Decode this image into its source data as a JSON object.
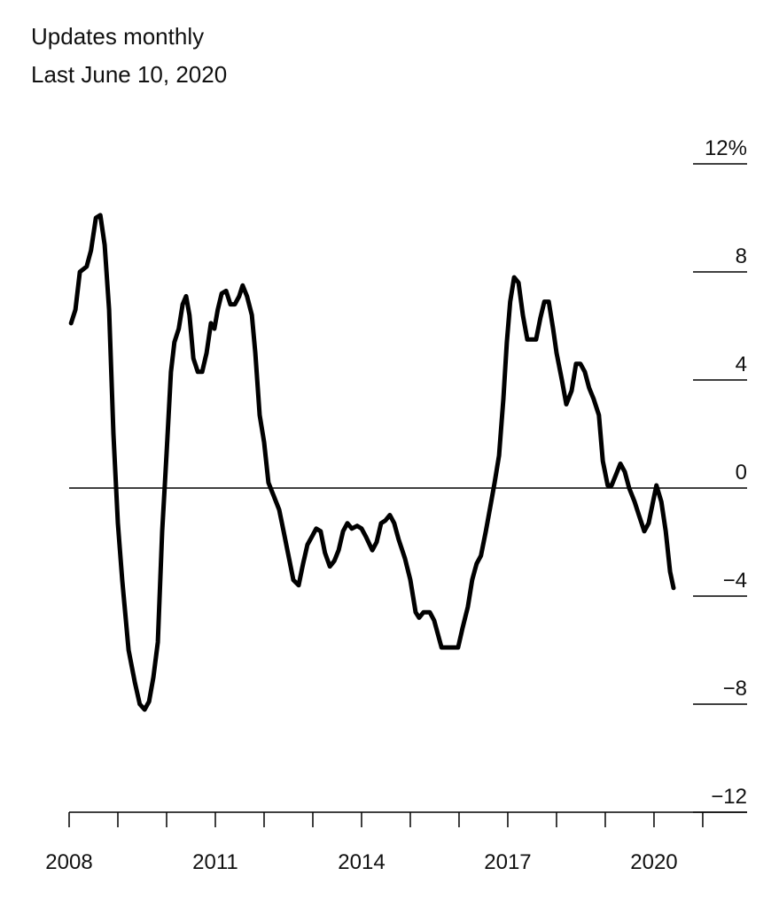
{
  "chart_data": {
    "type": "line",
    "subtitle": "Updates monthly",
    "note": "Last June 10, 2020",
    "color": "#000000",
    "x": [
      2008.04,
      2008.13,
      2008.22,
      2008.36,
      2008.45,
      2008.55,
      2008.64,
      2008.73,
      2008.82,
      2008.91,
      2009.0,
      2009.09,
      2009.22,
      2009.35,
      2009.45,
      2009.55,
      2009.64,
      2009.73,
      2009.82,
      2009.91,
      2010.0,
      2010.09,
      2010.16,
      2010.25,
      2010.33,
      2010.4,
      2010.47,
      2010.55,
      2010.64,
      2010.73,
      2010.82,
      2010.91,
      2010.98,
      2011.05,
      2011.13,
      2011.22,
      2011.31,
      2011.4,
      2011.49,
      2011.56,
      2011.65,
      2011.75,
      2011.82,
      2011.91,
      2012.0,
      2012.09,
      2012.2,
      2012.31,
      2012.4,
      2012.49,
      2012.6,
      2012.71,
      2012.8,
      2012.89,
      2012.98,
      2013.07,
      2013.16,
      2013.25,
      2013.35,
      2013.44,
      2013.53,
      2013.62,
      2013.71,
      2013.8,
      2013.91,
      2014.0,
      2014.09,
      2014.22,
      2014.31,
      2014.4,
      2014.49,
      2014.58,
      2014.67,
      2014.76,
      2014.89,
      2015.0,
      2015.11,
      2015.18,
      2015.27,
      2015.4,
      2015.49,
      2015.64,
      2015.76,
      2015.89,
      2015.98,
      2016.07,
      2016.18,
      2016.27,
      2016.36,
      2016.45,
      2016.55,
      2016.64,
      2016.73,
      2016.82,
      2016.91,
      2016.98,
      2017.05,
      2017.13,
      2017.22,
      2017.31,
      2017.4,
      2017.49,
      2017.58,
      2017.67,
      2017.75,
      2017.84,
      2017.93,
      2018.0,
      2018.11,
      2018.2,
      2018.31,
      2018.4,
      2018.49,
      2018.58,
      2018.67,
      2018.76,
      2018.87,
      2018.95,
      2019.05,
      2019.13,
      2019.22,
      2019.31,
      2019.4,
      2019.49,
      2019.6,
      2019.69,
      2019.8,
      2019.89,
      2019.98,
      2020.05,
      2020.15,
      2020.24,
      2020.33,
      2020.4
    ],
    "values": [
      6.1,
      6.6,
      8.0,
      8.2,
      8.8,
      10.0,
      10.1,
      9.0,
      6.6,
      2.0,
      -1.3,
      -3.4,
      -6.0,
      -7.2,
      -8.0,
      -8.2,
      -7.9,
      -7.0,
      -5.7,
      -1.6,
      1.3,
      4.3,
      5.4,
      5.9,
      6.8,
      7.1,
      6.4,
      4.8,
      4.3,
      4.3,
      5.0,
      6.1,
      5.9,
      6.6,
      7.2,
      7.3,
      6.8,
      6.8,
      7.1,
      7.5,
      7.1,
      6.4,
      5.0,
      2.7,
      1.7,
      0.2,
      -0.3,
      -0.8,
      -1.6,
      -2.4,
      -3.4,
      -3.6,
      -2.8,
      -2.1,
      -1.8,
      -1.5,
      -1.6,
      -2.4,
      -2.9,
      -2.7,
      -2.3,
      -1.6,
      -1.3,
      -1.5,
      -1.4,
      -1.5,
      -1.8,
      -2.3,
      -2.0,
      -1.3,
      -1.2,
      -1.0,
      -1.3,
      -1.9,
      -2.6,
      -3.4,
      -4.6,
      -4.8,
      -4.6,
      -4.6,
      -4.9,
      -5.9,
      -5.9,
      -5.9,
      -5.9,
      -5.2,
      -4.4,
      -3.4,
      -2.8,
      -2.5,
      -1.6,
      -0.7,
      0.2,
      1.2,
      3.3,
      5.4,
      6.9,
      7.8,
      7.6,
      6.4,
      5.5,
      5.5,
      5.5,
      6.3,
      6.9,
      6.9,
      5.9,
      5.0,
      4.0,
      3.1,
      3.6,
      4.6,
      4.6,
      4.3,
      3.7,
      3.3,
      2.7,
      1.0,
      0.1,
      0.1,
      0.5,
      0.9,
      0.6,
      0.0,
      -0.5,
      -1.0,
      -1.6,
      -1.3,
      -0.5,
      0.1,
      -0.5,
      -1.6,
      -3.1,
      -3.7
    ],
    "xlim": [
      2008,
      2021.91
    ],
    "xticks": [
      2008,
      2011,
      2014,
      2017,
      2020
    ],
    "xminorticks": [
      2009,
      2010,
      2012,
      2013,
      2015,
      2016,
      2018,
      2019,
      2021
    ],
    "ylim": [
      -12,
      12
    ],
    "yticks": [
      {
        "value": 12,
        "label": "12%"
      },
      8,
      4,
      0,
      {
        "value": -4,
        "label": "−4"
      },
      {
        "value": -8,
        "label": "−8"
      },
      {
        "value": -12,
        "label": "−12"
      }
    ],
    "grid": true
  }
}
